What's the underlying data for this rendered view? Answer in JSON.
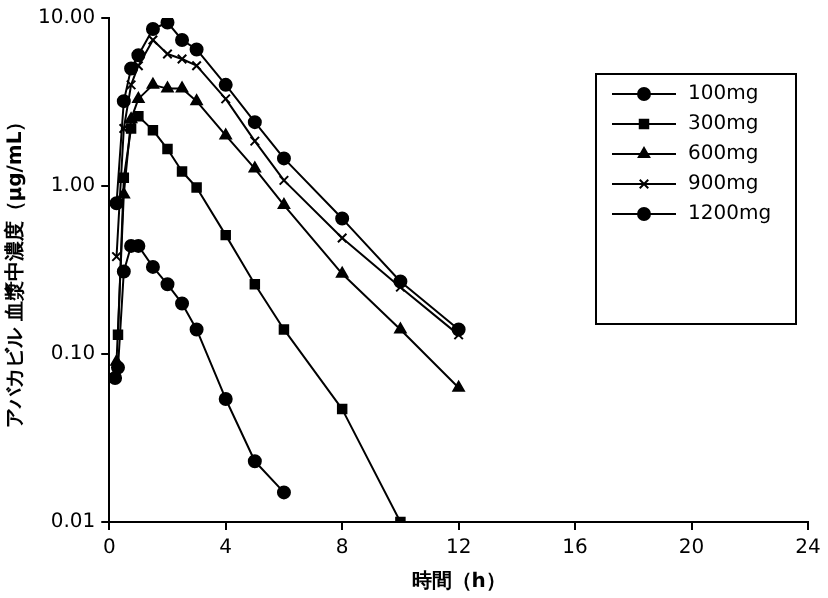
{
  "chart_data": {
    "type": "line",
    "xlabel": "時間（h）",
    "ylabel": "アバカビル 血漿中濃度（μg/mL）",
    "xlim": [
      0,
      24
    ],
    "xticks": [
      0,
      4,
      8,
      12,
      16,
      20,
      24
    ],
    "ylim": [
      0.01,
      10
    ],
    "yticks": [
      {
        "value": 0.01,
        "label": "0.01"
      },
      {
        "value": 0.1,
        "label": "0.10"
      },
      {
        "value": 1,
        "label": "1.00"
      },
      {
        "value": 10,
        "label": "10.00"
      }
    ],
    "log": "y",
    "grid": false,
    "legend": "top right",
    "series": [
      {
        "name": "100mg",
        "color": "#000000",
        "marker": "circle",
        "x": [
          0.2,
          0.3,
          0.5,
          0.75,
          1,
          1.5,
          2,
          2.5,
          3,
          4,
          5,
          6
        ],
        "values": [
          0.072,
          0.083,
          0.31,
          0.44,
          0.44,
          0.33,
          0.26,
          0.2,
          0.14,
          0.054,
          0.023,
          0.015
        ]
      },
      {
        "name": "300mg",
        "color": "#000000",
        "marker": "square",
        "x": [
          0.3,
          0.5,
          0.75,
          1,
          1.5,
          2,
          2.5,
          3,
          4,
          5,
          6,
          8,
          10
        ],
        "values": [
          0.13,
          1.12,
          2.2,
          2.6,
          2.15,
          1.66,
          1.22,
          0.98,
          0.51,
          0.26,
          0.14,
          0.047,
          0.01
        ]
      },
      {
        "name": "600mg",
        "color": "#000000",
        "marker": "triangle",
        "x": [
          0.25,
          0.5,
          0.75,
          1,
          1.5,
          2,
          2.5,
          3,
          4,
          5,
          6,
          8,
          10,
          12
        ],
        "values": [
          0.09,
          0.89,
          2.5,
          3.3,
          4.0,
          3.8,
          3.8,
          3.2,
          2.0,
          1.27,
          0.77,
          0.3,
          0.14,
          0.063
        ]
      },
      {
        "name": "900mg",
        "color": "#000000",
        "marker": "cross",
        "x": [
          0.25,
          0.5,
          0.75,
          1,
          1.5,
          2,
          2.5,
          3,
          4,
          5,
          6,
          8,
          10,
          12
        ],
        "values": [
          0.38,
          2.2,
          4.0,
          5.2,
          7.4,
          6.1,
          5.7,
          5.2,
          3.3,
          1.85,
          1.08,
          0.49,
          0.25,
          0.13
        ]
      },
      {
        "name": "1200mg",
        "color": "#000000",
        "marker": "circle",
        "x": [
          0.25,
          0.5,
          0.75,
          1,
          1.5,
          2,
          2.5,
          3,
          4,
          5,
          6,
          8,
          10,
          12
        ],
        "values": [
          0.79,
          3.2,
          5.0,
          6.0,
          8.6,
          9.4,
          7.4,
          6.5,
          4.0,
          2.4,
          1.46,
          0.64,
          0.27,
          0.14
        ]
      }
    ]
  }
}
